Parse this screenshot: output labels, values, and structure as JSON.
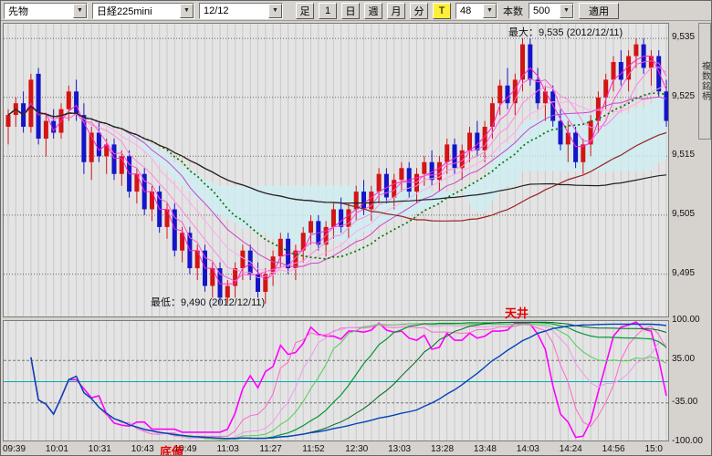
{
  "toolbar": {
    "market_select": "先物",
    "symbol_select": "日経225mini",
    "date_select": "12/12",
    "ashi_label": "足",
    "period_buttons": [
      "1",
      "日",
      "週",
      "月",
      "分"
    ],
    "tick_button": "T",
    "tick_value": "48",
    "bars_label": "本数",
    "bars_value": "500",
    "apply_label": "適用",
    "dropdown_arrow": "▼"
  },
  "side_tab": "複数銘柄",
  "annotations": {
    "max_label": "最大：9,535 (2012/12/11)",
    "min_label": "最低：9,490 (2012/12/11)",
    "ceiling": "天井",
    "bottom": "底値"
  },
  "osc_axis_labels": [
    "100.00",
    "35.00",
    "-35.00",
    "-100.00"
  ],
  "chart_data": {
    "type": "candlestick",
    "symbol": "日経225mini",
    "session_date": "12/12",
    "up_color": "#d41414",
    "down_color": "#1414c8",
    "price_range": [
      9487.5,
      9537.5
    ],
    "price_gridlines": [
      9535,
      9525,
      9515,
      9505,
      9495
    ],
    "price_axis_labels": [
      "9,535",
      "9,525",
      "9,515",
      "9,505",
      "9,495"
    ],
    "high": 9535,
    "low": 9490,
    "time_labels": [
      "09:39",
      "10:01",
      "10:31",
      "10:43",
      "10:49",
      "11:03",
      "11:27",
      "11:52",
      "12:30",
      "13:03",
      "13:28",
      "13:48",
      "14:03",
      "14:24",
      "14:56",
      "15:0"
    ],
    "candles": [
      [
        9520,
        9523,
        9517,
        9522
      ],
      [
        9522,
        9525,
        9520,
        9524
      ],
      [
        9524,
        9526,
        9519,
        9520
      ],
      [
        9520,
        9529,
        9519,
        9528
      ],
      [
        9529,
        9530,
        9517,
        9518
      ],
      [
        9518,
        9522,
        9515,
        9521
      ],
      [
        9521,
        9523,
        9518,
        9519
      ],
      [
        9519,
        9524,
        9518,
        9523
      ],
      [
        9523,
        9527,
        9521,
        9526
      ],
      [
        9526,
        9528,
        9521,
        9522
      ],
      [
        9522,
        9524,
        9512,
        9514
      ],
      [
        9514,
        9520,
        9511,
        9519
      ],
      [
        9519,
        9521,
        9514,
        9515
      ],
      [
        9515,
        9518,
        9512,
        9517
      ],
      [
        9517,
        9518,
        9511,
        9512
      ],
      [
        9512,
        9516,
        9510,
        9515
      ],
      [
        9515,
        9516,
        9508,
        9509
      ],
      [
        9509,
        9513,
        9507,
        9512
      ],
      [
        9512,
        9513,
        9505,
        9506
      ],
      [
        9506,
        9510,
        9504,
        9509
      ],
      [
        9509,
        9510,
        9502,
        9503
      ],
      [
        9503,
        9507,
        9501,
        9506
      ],
      [
        9506,
        9507,
        9498,
        9499
      ],
      [
        9499,
        9503,
        9497,
        9502
      ],
      [
        9502,
        9503,
        9495,
        9496
      ],
      [
        9496,
        9500,
        9494,
        9499
      ],
      [
        9499,
        9500,
        9492,
        9493
      ],
      [
        9493,
        9497,
        9491,
        9496
      ],
      [
        9496,
        9497,
        9490,
        9491
      ],
      [
        9491,
        9494,
        9490,
        9493
      ],
      [
        9493,
        9497,
        9491,
        9496
      ],
      [
        9496,
        9500,
        9494,
        9499
      ],
      [
        9499,
        9500,
        9494,
        9495
      ],
      [
        9495,
        9497,
        9491,
        9492
      ],
      [
        9492,
        9496,
        9490,
        9495
      ],
      [
        9495,
        9499,
        9493,
        9498
      ],
      [
        9498,
        9502,
        9496,
        9501
      ],
      [
        9501,
        9502,
        9495,
        9496
      ],
      [
        9496,
        9500,
        9494,
        9499
      ],
      [
        9499,
        9503,
        9497,
        9502
      ],
      [
        9502,
        9505,
        9500,
        9504
      ],
      [
        9504,
        9505,
        9499,
        9500
      ],
      [
        9500,
        9504,
        9498,
        9503
      ],
      [
        9503,
        9507,
        9501,
        9506
      ],
      [
        9506,
        9508,
        9502,
        9503
      ],
      [
        9503,
        9507,
        9501,
        9506
      ],
      [
        9506,
        9510,
        9504,
        9509
      ],
      [
        9509,
        9511,
        9505,
        9506
      ],
      [
        9506,
        9510,
        9504,
        9509
      ],
      [
        9509,
        9513,
        9507,
        9512
      ],
      [
        9512,
        9513,
        9507,
        9508
      ],
      [
        9508,
        9512,
        9506,
        9511
      ],
      [
        9511,
        9514,
        9509,
        9513
      ],
      [
        9513,
        9514,
        9508,
        9509
      ],
      [
        9509,
        9513,
        9507,
        9512
      ],
      [
        9512,
        9515,
        9510,
        9514
      ],
      [
        9514,
        9516,
        9510,
        9511
      ],
      [
        9511,
        9515,
        9509,
        9514
      ],
      [
        9514,
        9518,
        9512,
        9517
      ],
      [
        9517,
        9518,
        9512,
        9513
      ],
      [
        9513,
        9517,
        9511,
        9516
      ],
      [
        9516,
        9520,
        9514,
        9519
      ],
      [
        9519,
        9521,
        9515,
        9516
      ],
      [
        9516,
        9521,
        9514,
        9520
      ],
      [
        9520,
        9525,
        9518,
        9524
      ],
      [
        9524,
        9528,
        9522,
        9527
      ],
      [
        9527,
        9530,
        9523,
        9524
      ],
      [
        9524,
        9529,
        9522,
        9528
      ],
      [
        9528,
        9535,
        9526,
        9534
      ],
      [
        9534,
        9535,
        9527,
        9528
      ],
      [
        9528,
        9530,
        9523,
        9524
      ],
      [
        9524,
        9527,
        9521,
        9526
      ],
      [
        9526,
        9527,
        9520,
        9521
      ],
      [
        9521,
        9523,
        9516,
        9517
      ],
      [
        9517,
        9521,
        9514,
        9519
      ],
      [
        9519,
        9520,
        9513,
        9514
      ],
      [
        9514,
        9518,
        9512,
        9517
      ],
      [
        9517,
        9522,
        9515,
        9521
      ],
      [
        9521,
        9526,
        9519,
        9525
      ],
      [
        9525,
        9529,
        9523,
        9528
      ],
      [
        9528,
        9532,
        9526,
        9531
      ],
      [
        9531,
        9533,
        9527,
        9528
      ],
      [
        9528,
        9533,
        9526,
        9532
      ],
      [
        9532,
        9535,
        9530,
        9534
      ],
      [
        9534,
        9535,
        9529,
        9530
      ],
      [
        9530,
        9533,
        9527,
        9532
      ],
      [
        9532,
        9533,
        9525,
        9526
      ],
      [
        9526,
        9528,
        9520,
        9521
      ]
    ],
    "ma_overlays": [
      {
        "period": 3,
        "color": "#ff22cc",
        "width": 1
      },
      {
        "period": 5,
        "color": "#ff55dd",
        "width": 1
      },
      {
        "period": 8,
        "color": "#ff88e5",
        "width": 1
      },
      {
        "period": 12,
        "color": "#ffaaee",
        "width": 1
      },
      {
        "period": 16,
        "color": "#cc44cc",
        "width": 1
      },
      {
        "period": 21,
        "color": "#007700",
        "width": 1.7,
        "dash": "2,3"
      },
      {
        "period": 45,
        "color": "#992222",
        "width": 1.2
      },
      {
        "period": 70,
        "color": "#222222",
        "width": 1.2
      }
    ],
    "cloud": {
      "color": "#cdeef2",
      "tenkan": 9,
      "kijun": 26,
      "senkou_b": 52
    },
    "oscillator": {
      "type": "RCI",
      "range": [
        -100,
        100
      ],
      "gridlines": [
        100,
        35,
        0,
        -35,
        -100
      ],
      "label_values": [
        100,
        35,
        -35,
        -100
      ],
      "series": [
        {
          "period": 9,
          "color": "#ff00ff",
          "width": 1.6
        },
        {
          "period": 13,
          "color": "#ff66cc",
          "width": 1
        },
        {
          "period": 18,
          "color": "#ee99ee",
          "width": 1
        },
        {
          "period": 22,
          "color": "#55cc55",
          "width": 1
        },
        {
          "period": 30,
          "color": "#009933",
          "width": 1.2
        },
        {
          "period": 40,
          "color": "#006622",
          "width": 1
        },
        {
          "period": 55,
          "color": "#0044bb",
          "width": 1.4
        }
      ]
    }
  }
}
